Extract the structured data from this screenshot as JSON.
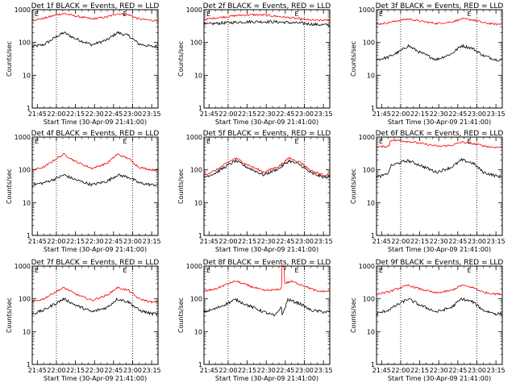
{
  "time_ticks": [
    "21:45",
    "22:00",
    "22:15",
    "22:30",
    "22:45",
    "23:00",
    "23:15"
  ],
  "y_ticks": [
    "1",
    "10",
    "100",
    "1000"
  ],
  "ylabel": "Counts/sec",
  "xlabel": "Start Time (30-Apr-09 21:41:00)",
  "e_marker": "E",
  "colors": {
    "events": "#000000",
    "lld": "#ff0000",
    "axes": "#000000"
  },
  "chart_data": [
    {
      "type": "line",
      "title": "Det 1f BLACK = Events, RED = LLD",
      "ylim": [
        1,
        1000
      ],
      "yscale": "log",
      "x_range": [
        "21:41",
        "23:20"
      ],
      "vlines": [
        "22:00",
        "23:00"
      ],
      "series": [
        {
          "name": "BLACK = Events",
          "x": [
            "21:41",
            "21:50",
            "22:00",
            "22:06",
            "22:15",
            "22:28",
            "22:40",
            "22:48",
            "22:57",
            "23:05",
            "23:15",
            "23:20"
          ],
          "values": [
            75,
            85,
            150,
            200,
            130,
            85,
            120,
            200,
            160,
            90,
            75,
            75
          ]
        },
        {
          "name": "RED = LLD",
          "x": [
            "21:41",
            "21:50",
            "22:00",
            "22:06",
            "22:15",
            "22:28",
            "22:40",
            "22:48",
            "22:57",
            "23:05",
            "23:15",
            "23:20"
          ],
          "values": [
            480,
            540,
            700,
            760,
            640,
            520,
            600,
            760,
            700,
            520,
            470,
            470
          ]
        }
      ]
    },
    {
      "type": "line",
      "title": "Det 2f BLACK = Events, RED = LLD",
      "ylim": [
        1,
        1000
      ],
      "yscale": "log",
      "x_range": [
        "21:41",
        "23:20"
      ],
      "vlines": [
        "22:00",
        "23:00"
      ],
      "series": [
        {
          "name": "BLACK = Events",
          "x": [
            "21:41",
            "21:50",
            "22:00",
            "22:10",
            "22:20",
            "22:30",
            "22:40",
            "22:50",
            "23:00",
            "23:10",
            "23:20"
          ],
          "values": [
            350,
            380,
            400,
            420,
            430,
            430,
            420,
            400,
            380,
            350,
            340
          ]
        },
        {
          "name": "RED = LLD",
          "x": [
            "21:41",
            "21:50",
            "22:00",
            "22:10",
            "22:20",
            "22:30",
            "22:40",
            "22:50",
            "23:00",
            "23:10",
            "23:20"
          ],
          "values": [
            500,
            560,
            620,
            680,
            700,
            680,
            620,
            560,
            500,
            470,
            480
          ]
        }
      ]
    },
    {
      "type": "line",
      "title": "Det 3f BLACK = Events, RED = LLD",
      "ylim": [
        1,
        1000
      ],
      "yscale": "log",
      "x_range": [
        "21:41",
        "23:20"
      ],
      "vlines": [
        "22:00",
        "23:00"
      ],
      "series": [
        {
          "name": "BLACK = Events",
          "x": [
            "21:41",
            "21:50",
            "22:00",
            "22:06",
            "22:15",
            "22:28",
            "22:40",
            "22:48",
            "22:57",
            "23:05",
            "23:15",
            "23:20"
          ],
          "values": [
            30,
            35,
            55,
            80,
            50,
            30,
            45,
            80,
            65,
            40,
            30,
            30
          ]
        },
        {
          "name": "RED = LLD",
          "x": [
            "21:41",
            "21:50",
            "22:00",
            "22:06",
            "22:15",
            "22:28",
            "22:40",
            "22:48",
            "22:57",
            "23:05",
            "23:15",
            "23:20"
          ],
          "values": [
            360,
            400,
            480,
            520,
            450,
            380,
            420,
            520,
            490,
            400,
            360,
            360
          ]
        }
      ]
    },
    {
      "type": "line",
      "title": "Det 4f BLACK = Events, RED = LLD",
      "ylim": [
        1,
        1000
      ],
      "yscale": "log",
      "x_range": [
        "21:41",
        "23:20"
      ],
      "vlines": [
        "22:00",
        "23:00"
      ],
      "series": [
        {
          "name": "BLACK = Events",
          "x": [
            "21:41",
            "21:50",
            "22:00",
            "22:06",
            "22:15",
            "22:28",
            "22:40",
            "22:48",
            "22:57",
            "23:05",
            "23:15",
            "23:20"
          ],
          "values": [
            35,
            40,
            55,
            70,
            50,
            35,
            45,
            70,
            60,
            40,
            35,
            35
          ]
        },
        {
          "name": "RED = LLD",
          "x": [
            "21:41",
            "21:50",
            "22:00",
            "22:06",
            "22:15",
            "22:28",
            "22:40",
            "22:48",
            "22:57",
            "23:05",
            "23:15",
            "23:20"
          ],
          "values": [
            100,
            120,
            220,
            300,
            180,
            110,
            160,
            300,
            220,
            120,
            100,
            100
          ]
        }
      ]
    },
    {
      "type": "line",
      "title": "Det 5f BLACK = Events, RED = LLD",
      "ylim": [
        1,
        1000
      ],
      "yscale": "log",
      "x_range": [
        "21:41",
        "23:20"
      ],
      "vlines": [
        "22:00",
        "23:00"
      ],
      "series": [
        {
          "name": "BLACK = Events",
          "x": [
            "21:41",
            "21:50",
            "22:00",
            "22:06",
            "22:15",
            "22:28",
            "22:40",
            "22:48",
            "22:57",
            "23:05",
            "23:15",
            "23:20"
          ],
          "values": [
            60,
            80,
            140,
            190,
            120,
            70,
            110,
            190,
            140,
            80,
            60,
            60
          ]
        },
        {
          "name": "RED = LLD",
          "x": [
            "21:41",
            "21:50",
            "22:00",
            "22:06",
            "22:15",
            "22:28",
            "22:40",
            "22:48",
            "22:57",
            "23:05",
            "23:15",
            "23:20"
          ],
          "values": [
            70,
            95,
            170,
            230,
            145,
            85,
            130,
            230,
            170,
            95,
            70,
            70
          ]
        }
      ]
    },
    {
      "type": "line",
      "title": "Det 6f BLACK = Events, RED = LLD",
      "ylim": [
        1,
        1000
      ],
      "yscale": "log",
      "x_range": [
        "21:41",
        "23:20"
      ],
      "vlines": [
        "22:00",
        "23:00"
      ],
      "series": [
        {
          "name": "BLACK = Events",
          "x": [
            "21:41",
            "21:48",
            "21:51",
            "21:52",
            "22:00",
            "22:06",
            "22:15",
            "22:28",
            "22:40",
            "22:48",
            "22:57",
            "23:05",
            "23:15",
            "23:20"
          ],
          "values": [
            60,
            70,
            90,
            130,
            170,
            190,
            140,
            85,
            120,
            200,
            160,
            85,
            65,
            60
          ]
        },
        {
          "name": "RED = LLD",
          "x": [
            "21:41",
            "21:50",
            "21:51",
            "21:52",
            "22:00",
            "22:10",
            "22:20",
            "22:30",
            "22:40",
            "22:48",
            "23:00",
            "23:10",
            "23:20"
          ],
          "values": [
            500,
            520,
            560,
            800,
            780,
            700,
            600,
            520,
            560,
            700,
            600,
            500,
            480
          ]
        }
      ]
    },
    {
      "type": "line",
      "title": "Det 7f BLACK = Events, RED = LLD",
      "ylim": [
        1,
        1000
      ],
      "yscale": "log",
      "x_range": [
        "21:41",
        "23:20"
      ],
      "vlines": [
        "22:00",
        "23:00"
      ],
      "series": [
        {
          "name": "BLACK = Events",
          "x": [
            "21:41",
            "21:50",
            "22:00",
            "22:06",
            "22:15",
            "22:28",
            "22:40",
            "22:48",
            "22:57",
            "23:05",
            "23:15",
            "23:20"
          ],
          "values": [
            35,
            45,
            75,
            100,
            65,
            40,
            55,
            100,
            80,
            45,
            35,
            35
          ]
        },
        {
          "name": "RED = LLD",
          "x": [
            "21:41",
            "21:50",
            "22:00",
            "22:06",
            "22:15",
            "22:28",
            "22:40",
            "22:48",
            "22:57",
            "23:05",
            "23:15",
            "23:20"
          ],
          "values": [
            80,
            100,
            170,
            220,
            140,
            90,
            130,
            220,
            180,
            100,
            80,
            80
          ]
        }
      ]
    },
    {
      "type": "line",
      "title": "Det 8f BLACK = Events, RED = LLD",
      "ylim": [
        1,
        1000
      ],
      "yscale": "log",
      "x_range": [
        "21:41",
        "23:20"
      ],
      "vlines": [
        "22:00",
        "23:00"
      ],
      "series": [
        {
          "name": "BLACK = Events",
          "x": [
            "21:41",
            "21:50",
            "22:00",
            "22:06",
            "22:15",
            "22:28",
            "22:37",
            "22:42",
            "22:42.5",
            "22:47",
            "22:57",
            "23:05",
            "23:15",
            "23:20"
          ],
          "values": [
            40,
            50,
            75,
            95,
            65,
            40,
            30,
            60,
            30,
            95,
            70,
            45,
            40,
            40
          ]
        },
        {
          "name": "RED = LLD",
          "x": [
            "21:41",
            "21:50",
            "22:00",
            "22:06",
            "22:15",
            "22:28",
            "22:40",
            "22:42",
            "22:42.5",
            "22:44",
            "22:44.5",
            "22:50",
            "23:00",
            "23:10",
            "23:20"
          ],
          "values": [
            170,
            200,
            290,
            350,
            260,
            180,
            190,
            220,
            1000,
            1000,
            300,
            340,
            250,
            170,
            170
          ]
        }
      ]
    },
    {
      "type": "line",
      "title": "Det 9f BLACK = Events, RED = LLD",
      "ylim": [
        1,
        1000
      ],
      "yscale": "log",
      "x_range": [
        "21:41",
        "23:20"
      ],
      "vlines": [
        "22:00",
        "23:00"
      ],
      "series": [
        {
          "name": "BLACK = Events",
          "x": [
            "21:41",
            "21:50",
            "22:00",
            "22:06",
            "22:15",
            "22:28",
            "22:40",
            "22:48",
            "22:57",
            "23:05",
            "23:15",
            "23:20"
          ],
          "values": [
            35,
            45,
            75,
            100,
            65,
            40,
            55,
            100,
            80,
            45,
            35,
            35
          ]
        },
        {
          "name": "RED = LLD",
          "x": [
            "21:41",
            "21:50",
            "22:00",
            "22:06",
            "22:15",
            "22:28",
            "22:40",
            "22:48",
            "22:57",
            "23:05",
            "23:15",
            "23:20"
          ],
          "values": [
            140,
            160,
            220,
            260,
            200,
            150,
            180,
            260,
            220,
            160,
            140,
            140
          ]
        }
      ]
    }
  ]
}
